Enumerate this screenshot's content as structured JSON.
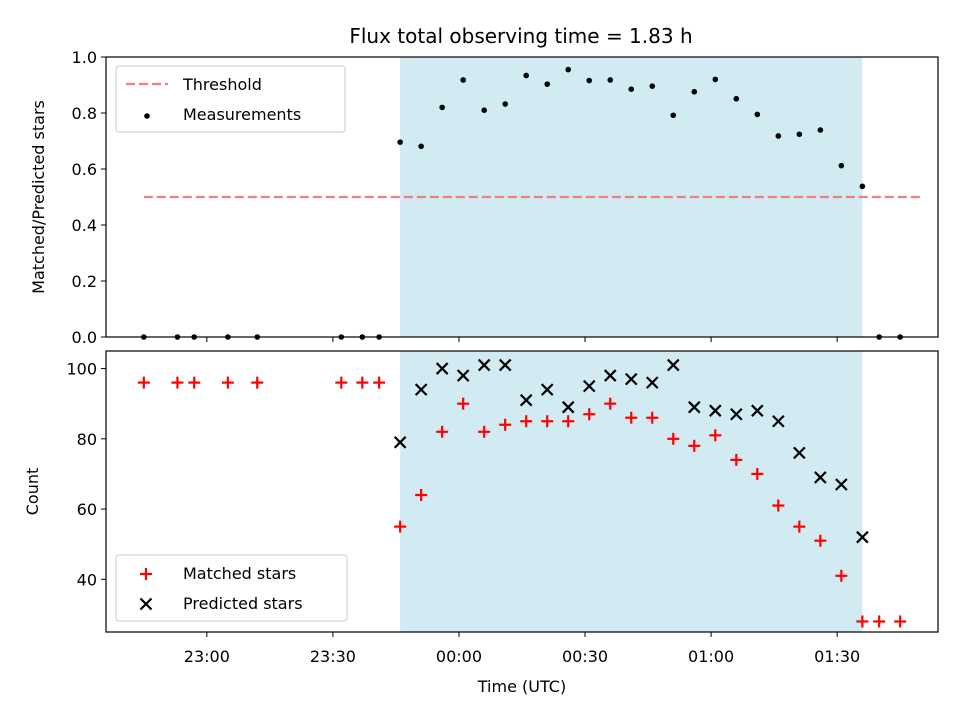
{
  "title": "Flux total observing time = 1.83 h",
  "chart_data": [
    {
      "type": "scatter",
      "ylabel": "Matched/Predicted stars",
      "ylim": [
        0,
        1.0
      ],
      "yticks": [
        "0.0",
        "0.2",
        "0.4",
        "0.6",
        "0.8",
        "1.0"
      ],
      "yticks_values": [
        0,
        0.2,
        0.4,
        0.6,
        0.8,
        1.0
      ],
      "legend_position": "upper-left",
      "threshold": {
        "name": "Threshold",
        "y": 0.5,
        "x_range": [
          "22:45",
          "01:50"
        ],
        "color": "#f08080"
      },
      "series": [
        {
          "name": "Measurements",
          "color": "#000000",
          "x": [
            "22:45",
            "22:53",
            "22:57",
            "23:05",
            "23:12",
            "23:32",
            "23:37",
            "23:41",
            "23:46",
            "23:51",
            "23:56",
            "00:01",
            "00:06",
            "00:11",
            "00:16",
            "00:21",
            "00:26",
            "00:31",
            "00:36",
            "00:41",
            "00:46",
            "00:51",
            "00:56",
            "01:01",
            "01:06",
            "01:11",
            "01:16",
            "01:21",
            "01:26",
            "01:31",
            "01:36",
            "01:40",
            "01:45"
          ],
          "y": [
            0,
            0,
            0,
            0,
            0,
            0,
            0,
            0,
            0.696,
            0.681,
            0.82,
            0.918,
            0.81,
            0.832,
            0.934,
            0.903,
            0.955,
            0.916,
            0.918,
            0.885,
            0.896,
            0.792,
            0.876,
            0.92,
            0.851,
            0.795,
            0.718,
            0.724,
            0.739,
            0.612,
            0.538,
            0,
            0
          ]
        }
      ]
    },
    {
      "type": "scatter",
      "ylabel": "Count",
      "ylim": [
        25,
        105
      ],
      "yticks": [
        "40",
        "60",
        "80",
        "100"
      ],
      "yticks_values": [
        40,
        60,
        80,
        100
      ],
      "legend_position": "lower-left",
      "series": [
        {
          "name": "Matched stars",
          "marker": "plus",
          "color": "#ff0000",
          "x": [
            "22:45",
            "22:53",
            "22:57",
            "23:05",
            "23:12",
            "23:32",
            "23:37",
            "23:41",
            "23:46",
            "23:51",
            "23:56",
            "00:01",
            "00:06",
            "00:11",
            "00:16",
            "00:21",
            "00:26",
            "00:31",
            "00:36",
            "00:41",
            "00:46",
            "00:51",
            "00:56",
            "01:01",
            "01:06",
            "01:11",
            "01:16",
            "01:21",
            "01:26",
            "01:31",
            "01:36",
            "01:40",
            "01:45"
          ],
          "y": [
            96,
            96,
            96,
            96,
            96,
            96,
            96,
            96,
            55,
            64,
            82,
            90,
            82,
            84,
            85,
            85,
            85,
            87,
            90,
            86,
            86,
            80,
            78,
            81,
            74,
            70,
            61,
            55,
            51,
            41,
            28,
            28,
            28
          ]
        },
        {
          "name": "Predicted stars",
          "marker": "x",
          "color": "#000000",
          "x": [
            "23:46",
            "23:51",
            "23:56",
            "00:01",
            "00:06",
            "00:11",
            "00:16",
            "00:21",
            "00:26",
            "00:31",
            "00:36",
            "00:41",
            "00:46",
            "00:51",
            "00:56",
            "01:01",
            "01:06",
            "01:11",
            "01:16",
            "01:21",
            "01:26",
            "01:31",
            "01:36"
          ],
          "y": [
            79,
            94,
            100,
            98,
            101,
            101,
            91,
            94,
            89,
            95,
            98,
            97,
            96,
            101,
            89,
            88,
            87,
            88,
            85,
            76,
            69,
            67,
            52
          ]
        }
      ]
    }
  ],
  "shared_x": {
    "label": "Time (UTC)",
    "tick_labels": [
      "23:00",
      "23:30",
      "00:00",
      "00:30",
      "01:00",
      "01:30"
    ],
    "tick_times": [
      "23:00",
      "23:30",
      "00:00",
      "00:30",
      "01:00",
      "01:30"
    ],
    "range": [
      "22:36",
      "01:54"
    ],
    "span": {
      "start": "23:46",
      "end": "01:36",
      "color": "#add8e6"
    }
  }
}
